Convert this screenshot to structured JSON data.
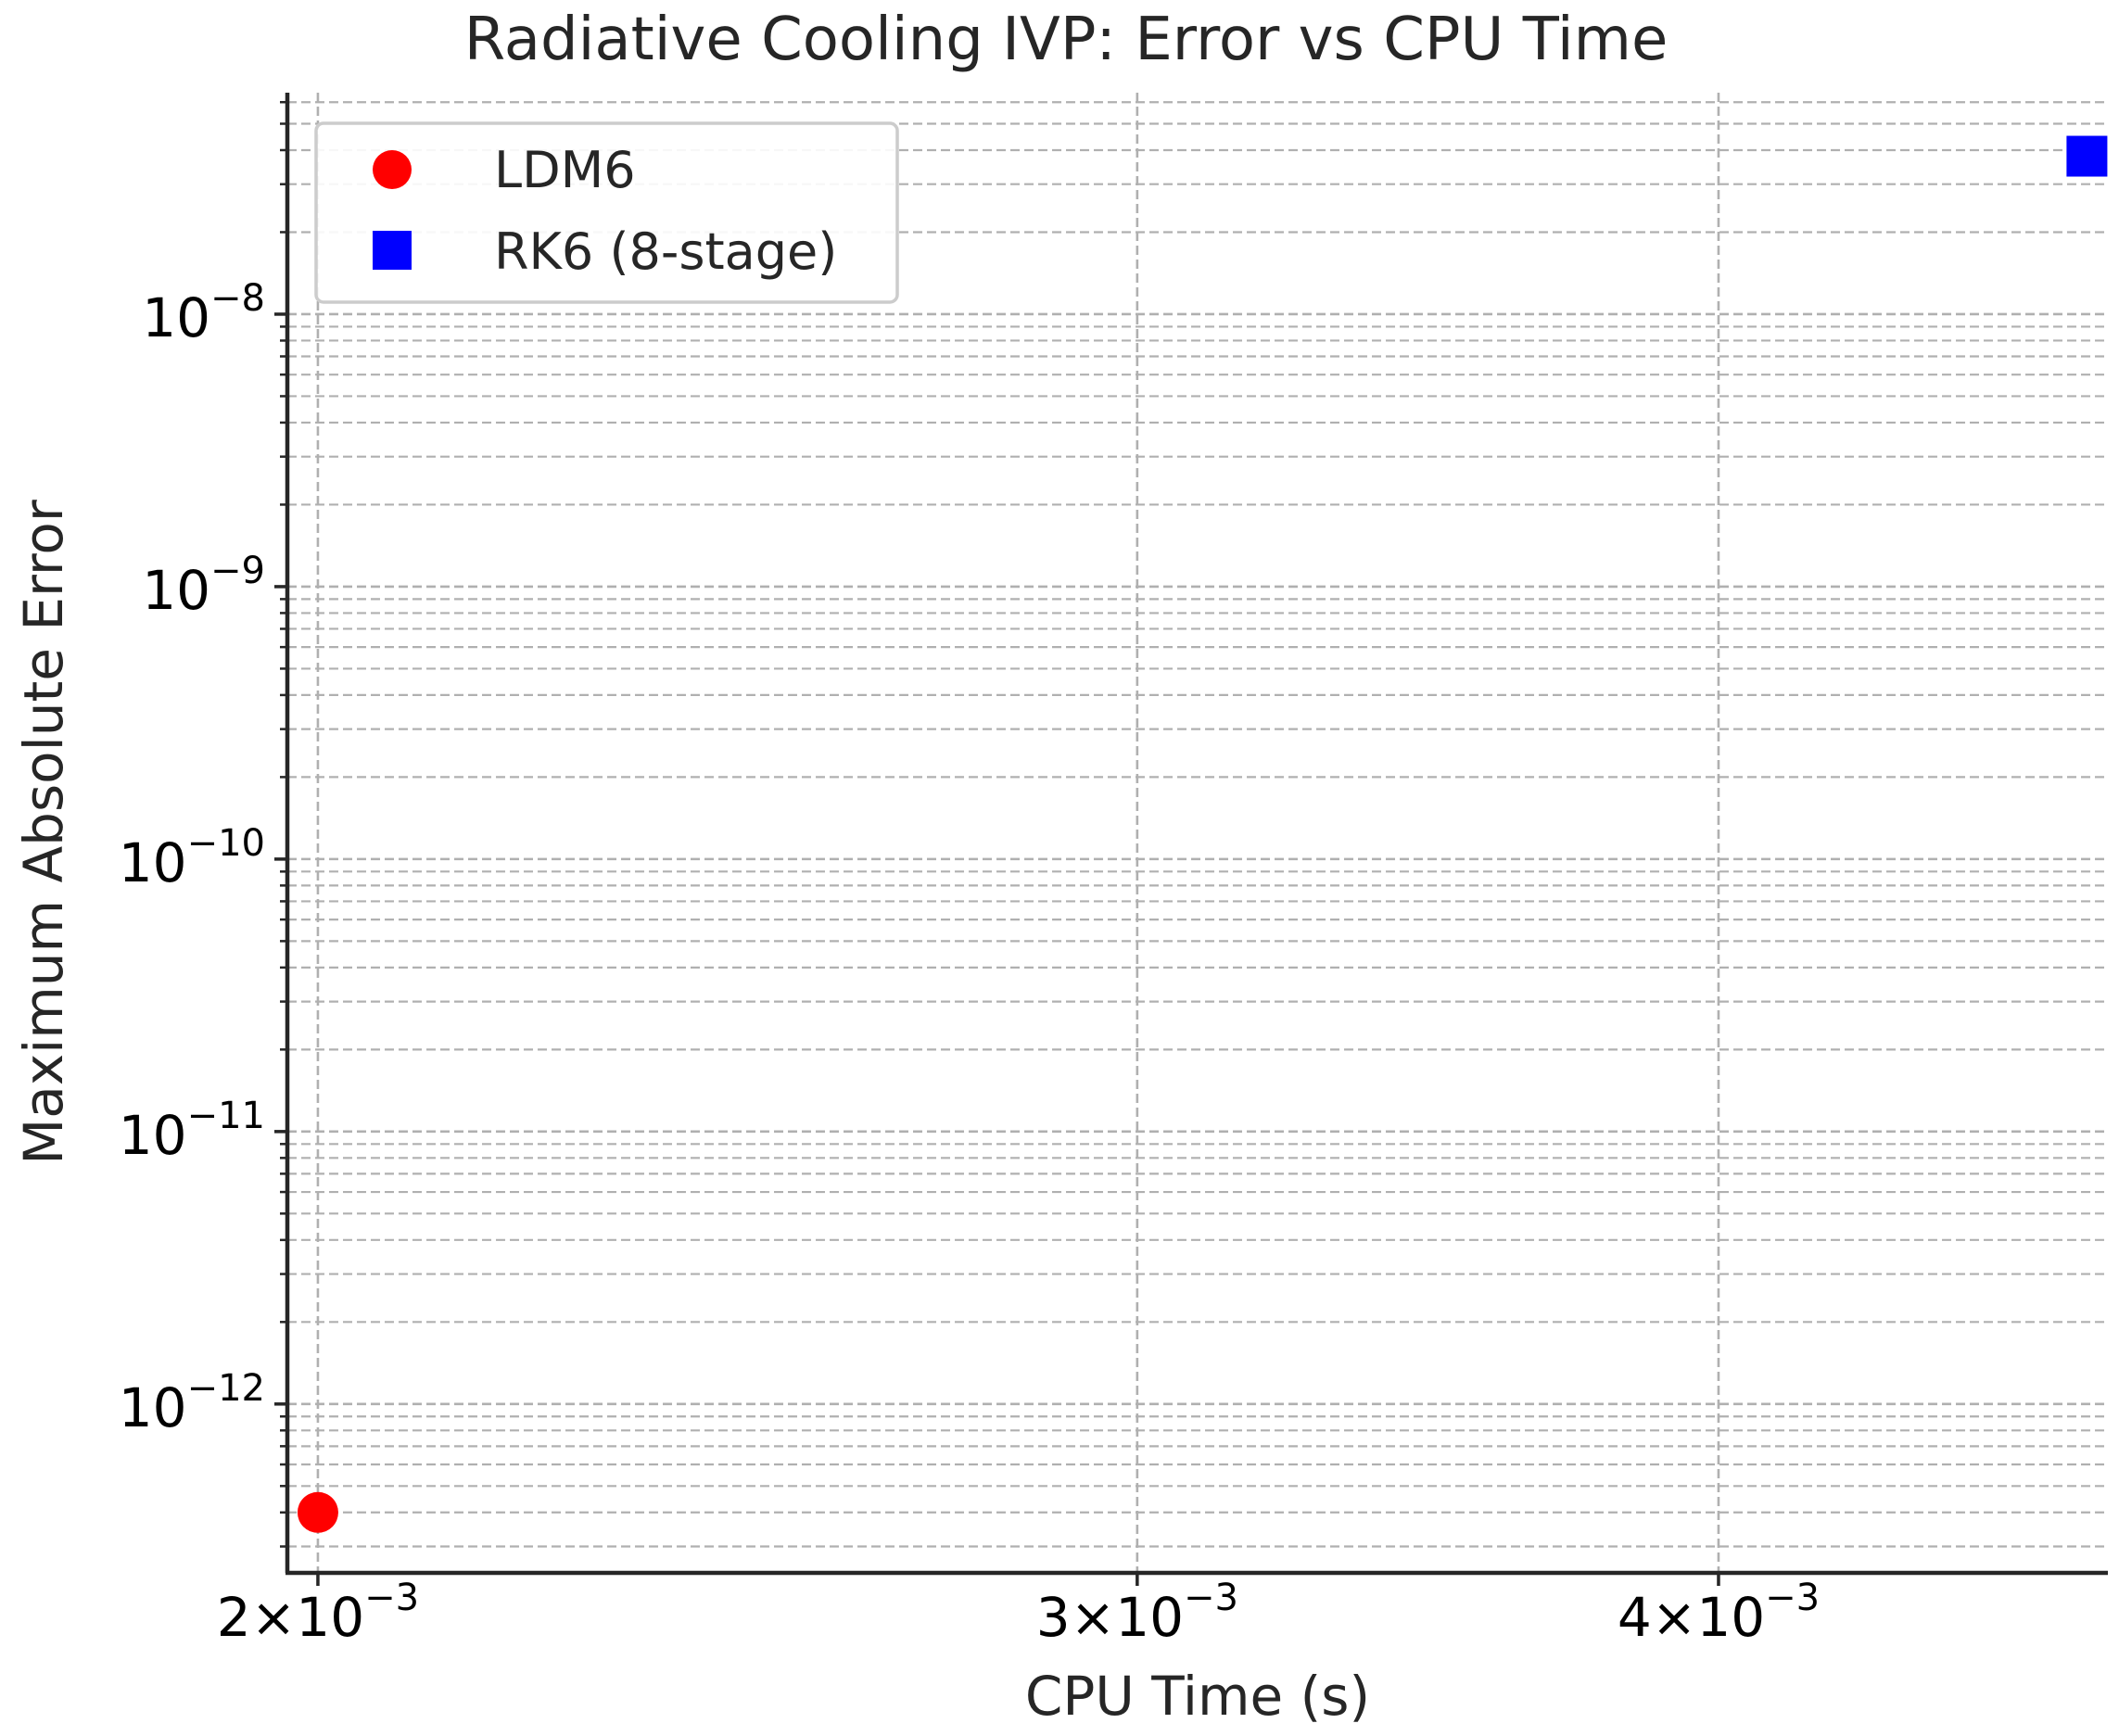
{
  "chart_data": {
    "type": "scatter",
    "title": "Radiative Cooling IVP: Error vs CPU Time",
    "xlabel": "CPU Time (s)",
    "ylabel": "Maximum Absolute Error",
    "xscale": "log",
    "yscale": "log",
    "xlim": [
      0.00197,
      0.00485
    ],
    "ylim": [
      2.4e-13,
      6.5e-08
    ],
    "grid": true,
    "legend_position": "top-left",
    "x_ticks": [
      {
        "value": 0.002,
        "base": "2",
        "exponent": "−3"
      },
      {
        "value": 0.003,
        "base": "3",
        "exponent": "−3"
      },
      {
        "value": 0.004,
        "base": "4",
        "exponent": "−3"
      }
    ],
    "y_ticks": [
      {
        "value": 1e-08,
        "exponent": "−8"
      },
      {
        "value": 1e-09,
        "exponent": "−9"
      },
      {
        "value": 1e-10,
        "exponent": "−10"
      },
      {
        "value": 1e-11,
        "exponent": "−11"
      },
      {
        "value": 1e-12,
        "exponent": "−12"
      }
    ],
    "series": [
      {
        "name": "LDM6",
        "marker": "circle",
        "color": "#ff0000",
        "points": [
          {
            "x": 0.002,
            "y": 4e-13
          }
        ]
      },
      {
        "name": "RK6 (8-stage)",
        "marker": "square",
        "color": "#0000ff",
        "points": [
          {
            "x": 0.0048,
            "y": 3.8e-08
          }
        ]
      }
    ]
  }
}
